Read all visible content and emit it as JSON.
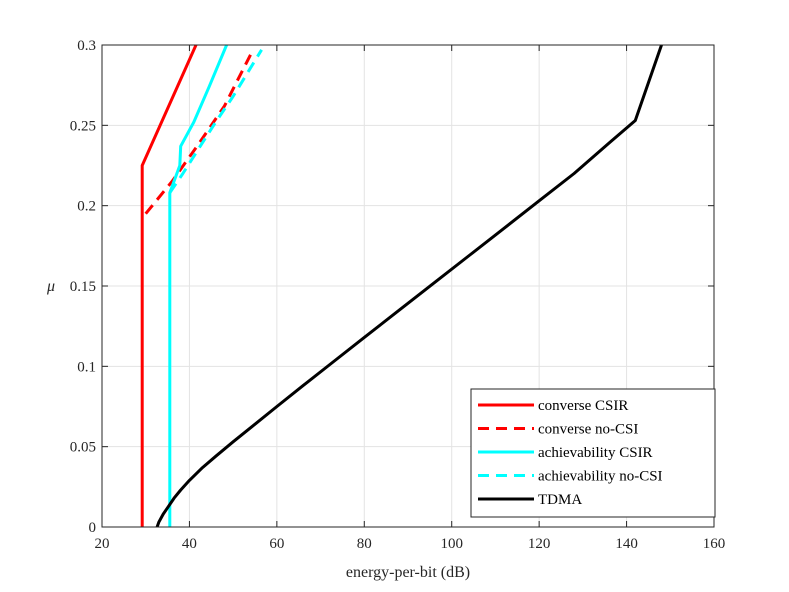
{
  "chart_data": {
    "type": "line",
    "title": "",
    "xlabel": "energy-per-bit (dB)",
    "ylabel": "μ",
    "xlim": [
      20,
      160
    ],
    "ylim": [
      0,
      0.3
    ],
    "xticks": [
      20,
      40,
      60,
      80,
      100,
      120,
      140,
      160
    ],
    "yticks": [
      0,
      0.05,
      0.1,
      0.15,
      0.2,
      0.25,
      0.3
    ],
    "xtick_labels": [
      "20",
      "40",
      "60",
      "80",
      "100",
      "120",
      "140",
      "160"
    ],
    "ytick_labels": [
      "0",
      "0.05",
      "0.1",
      "0.15",
      "0.2",
      "0.25",
      "0.3"
    ],
    "grid": true,
    "legend_position": "bottom-right",
    "series": [
      {
        "name": "converse CSIR",
        "color": "#ff0000",
        "dash": "solid",
        "x": [
          29.2,
          29.2,
          29.2,
          41.5
        ],
        "y": [
          0,
          0.19,
          0.225,
          0.3
        ]
      },
      {
        "name": "converse no-CSI",
        "color": "#ff0000",
        "dash": "dashed",
        "x": [
          30.0,
          36.0,
          42.0,
          48.0,
          54.0
        ],
        "y": [
          0.195,
          0.215,
          0.238,
          0.262,
          0.294
        ]
      },
      {
        "name": "achievability CSIR",
        "color": "#00ffff",
        "dash": "solid",
        "x": [
          35.5,
          35.5,
          35.5,
          37.8,
          38.0,
          41.0,
          44.5,
          48.5
        ],
        "y": [
          0,
          0.1,
          0.208,
          0.225,
          0.237,
          0.252,
          0.274,
          0.3
        ]
      },
      {
        "name": "achievability no-CSI",
        "color": "#00ffff",
        "dash": "dashed",
        "x": [
          35.5,
          38.5,
          42.0,
          46.0,
          50.0,
          56.5
        ],
        "y": [
          0.208,
          0.22,
          0.235,
          0.252,
          0.268,
          0.297
        ]
      },
      {
        "name": "TDMA",
        "color": "#000000",
        "dash": "solid",
        "x": [
          32.6,
          33.0,
          34.0,
          35.0,
          36.5,
          38.0,
          40.0,
          43.0,
          46.0,
          50.0,
          55.0,
          60.0,
          66.0,
          73.0,
          80.0,
          88.0,
          96.0,
          104.0,
          112.0,
          120.0,
          128.0,
          136.0,
          142.0,
          148.0
        ],
        "y": [
          0,
          0.003,
          0.008,
          0.012,
          0.018,
          0.023,
          0.029,
          0.037,
          0.044,
          0.053,
          0.064,
          0.075,
          0.088,
          0.103,
          0.118,
          0.135,
          0.152,
          0.169,
          0.186,
          0.203,
          0.22,
          0.239,
          0.253,
          0.3
        ]
      }
    ]
  }
}
